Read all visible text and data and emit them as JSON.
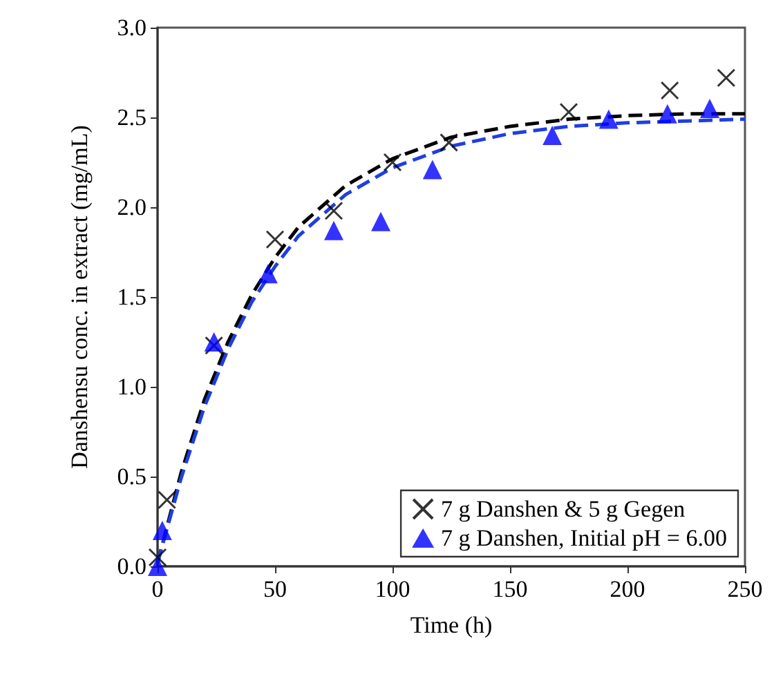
{
  "chart_data": {
    "type": "scatter",
    "xlabel": "Time (h)",
    "ylabel": "Danshensu conc. in extract (mg/mL)",
    "xlim": [
      0,
      250
    ],
    "xticks": [
      0,
      50,
      100,
      150,
      200,
      250
    ],
    "ylim": [
      0,
      3
    ],
    "yticks": [
      {
        "value": 0,
        "label": "0.0"
      },
      {
        "value": 0.5,
        "label": "0.5"
      },
      {
        "value": 1,
        "label": "1.0"
      },
      {
        "value": 1.5,
        "label": "1.5"
      },
      {
        "value": 2,
        "label": "2.0"
      },
      {
        "value": 2.5,
        "label": "2.5"
      },
      {
        "value": 3,
        "label": "3.0"
      }
    ],
    "grid": false,
    "legend": "bottom right",
    "series": [
      {
        "type": "line",
        "color": "#000000",
        "line_style": "dashed",
        "marker": "none",
        "x": [
          0,
          10,
          20,
          30,
          40,
          50,
          60,
          80,
          100,
          125,
          150,
          175,
          200,
          225,
          250
        ],
        "values": [
          0.02,
          0.52,
          0.93,
          1.25,
          1.51,
          1.72,
          1.89,
          2.12,
          2.27,
          2.39,
          2.45,
          2.49,
          2.51,
          2.52,
          2.52
        ]
      },
      {
        "type": "line",
        "color": "#1f3fe0",
        "line_style": "dashed",
        "marker": "none",
        "x": [
          0,
          10,
          20,
          30,
          40,
          50,
          60,
          80,
          100,
          125,
          150,
          175,
          200,
          225,
          250
        ],
        "values": [
          0.02,
          0.49,
          0.89,
          1.21,
          1.47,
          1.67,
          1.84,
          2.07,
          2.22,
          2.34,
          2.41,
          2.45,
          2.47,
          2.48,
          2.49
        ]
      },
      {
        "name": "7 g Danshen & 5 g Gegen",
        "color": "#000000",
        "marker": "cross",
        "x": [
          0,
          4,
          24,
          50,
          75,
          100,
          124,
          175,
          218,
          242
        ],
        "values": [
          0.05,
          0.37,
          1.23,
          1.82,
          1.98,
          2.25,
          2.36,
          2.53,
          2.65,
          2.72
        ]
      },
      {
        "name": "7 g Danshen, Initial pH = 6.00",
        "color": "#0000ff",
        "marker": "triangle",
        "x": [
          0,
          2,
          24,
          47,
          75,
          95,
          117,
          168,
          192,
          217,
          235
        ],
        "values": [
          0,
          0.2,
          1.25,
          1.63,
          1.87,
          1.92,
          2.21,
          2.4,
          2.49,
          2.52,
          2.55
        ]
      }
    ]
  }
}
